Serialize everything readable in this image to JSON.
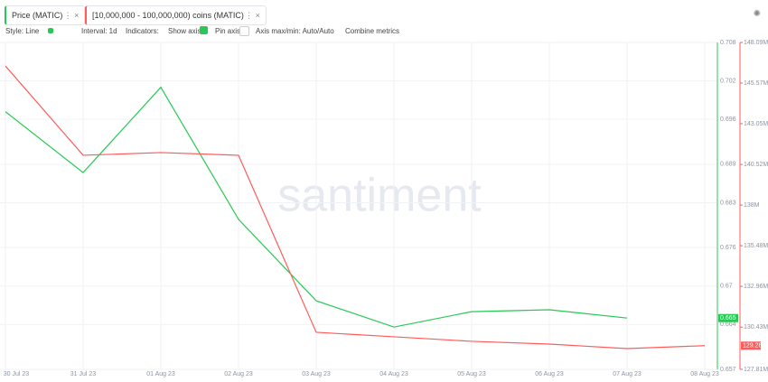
{
  "ui": {
    "tabs": [
      "Price (MATIC)",
      "[10,000,000 - 100,000,000) coins (MATIC)"
    ],
    "toolbar": {
      "style": "Style: Line",
      "interval": "Interval: 1d",
      "indicators": "Indicators:",
      "show_axis": "Show axis",
      "pin_axis": "Pin axis",
      "axis_minmax": "Axis max/min: Auto/Auto",
      "combine": "Combine metrics"
    }
  },
  "chart_data": {
    "type": "line",
    "watermark": "santiment",
    "categories": [
      "30 Jul 23",
      "31 Jul 23",
      "01 Aug 23",
      "02 Aug 23",
      "03 Aug 23",
      "04 Aug 23",
      "05 Aug 23",
      "06 Aug 23",
      "07 Aug 23",
      "08 Aug 23"
    ],
    "series": [
      {
        "name": "Price (MATIC)",
        "color": "#26c953",
        "values": [
          0.6972,
          0.6877,
          0.701,
          0.6804,
          0.6677,
          0.6636,
          0.666,
          0.6663,
          0.665,
          null
        ]
      },
      {
        "name": "[10,000,000 - 100,000,000) coins (MATIC)",
        "color": "#ff5b5b",
        "axis": "y2",
        "values": [
          146630000,
          141090000,
          141260000,
          141090000,
          130110000,
          129830000,
          129550000,
          129380000,
          129100000,
          129280000
        ],
        "value_labels": [
          null,
          null,
          null,
          null,
          null,
          null,
          null,
          null,
          null,
          "129.28M"
        ]
      }
    ],
    "ylim": [
      0.657,
      0.708
    ],
    "yticks": [
      0.708,
      0.702,
      0.696,
      0.689,
      0.683,
      0.676,
      0.67,
      0.664,
      0.657
    ],
    "y2lim": [
      127810000,
      148090000
    ],
    "y2ticks": [
      {
        "value": 148090000,
        "label": "148.09M"
      },
      {
        "value": 145570000,
        "label": "145.57M"
      },
      {
        "value": 143050000,
        "label": "143.05M"
      },
      {
        "value": 140520000,
        "label": "140.52M"
      },
      {
        "value": 138000000,
        "label": "138M"
      },
      {
        "value": 135480000,
        "label": "135.48M"
      },
      {
        "value": 132960000,
        "label": "132.96M"
      },
      {
        "value": 130430000,
        "label": "130.43M"
      },
      {
        "value": 127810000,
        "label": "127.81M"
      }
    ],
    "grid": true
  }
}
